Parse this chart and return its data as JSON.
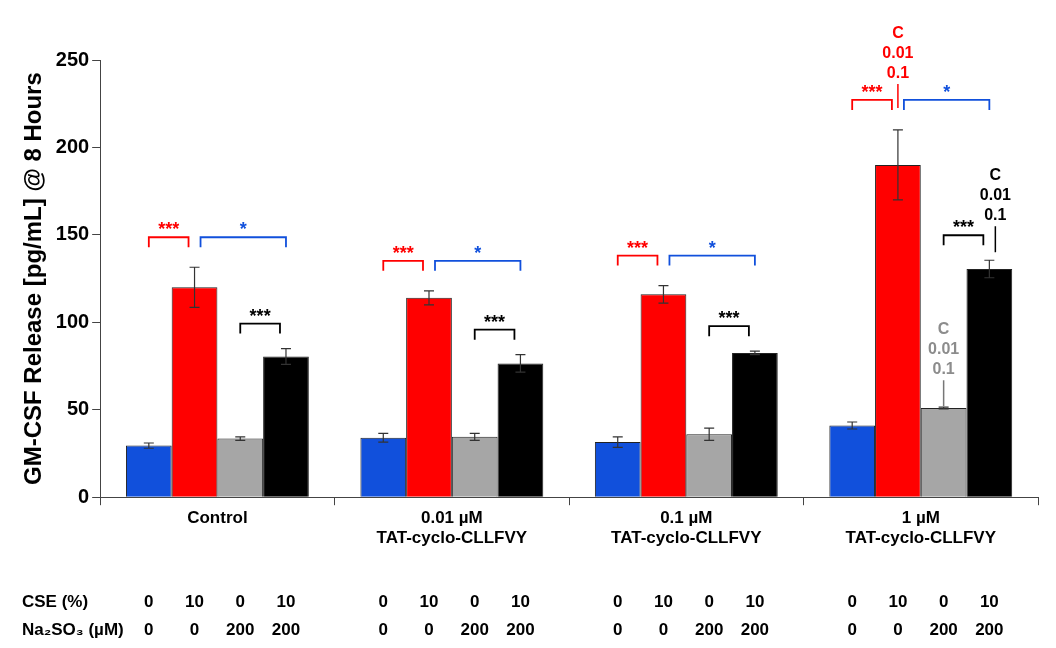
{
  "chart_data": {
    "type": "bar",
    "ylabel": "GM-CSF Release [pg/mL] @ 8 Hours",
    "categories": [
      "Control",
      "0.01 µM TAT-cyclo-CLLFVY",
      "0.1 µM TAT-cyclo-CLLFVY",
      "1 µM TAT-cyclo-CLLFVY"
    ],
    "series": [
      {
        "color": "#1150dc",
        "values": [
          29.5,
          34,
          31.5,
          41
        ],
        "errors": [
          1.5,
          2.5,
          3,
          2
        ]
      },
      {
        "color": "#ff0000",
        "values": [
          120,
          114,
          116,
          190
        ],
        "errors": [
          11.5,
          4,
          5,
          20
        ]
      },
      {
        "color": "#a6a6a6",
        "values": [
          33.5,
          34.5,
          36,
          51
        ],
        "errors": [
          1,
          2,
          3.5,
          0.5
        ]
      },
      {
        "color": "#000000",
        "values": [
          80.5,
          76.5,
          82.5,
          130.5
        ],
        "errors": [
          4.5,
          5,
          1,
          5
        ]
      }
    ],
    "ylim": [
      0,
      250
    ],
    "yticks": [
      0,
      50,
      100,
      150,
      200,
      250
    ],
    "grid": false,
    "legend": false,
    "annotations": [
      "CSE (%)",
      "Na₂SO₃ (µM)",
      "0",
      "10",
      "0",
      "10",
      "0",
      "10",
      "0",
      "10",
      "0",
      "10",
      "0",
      "10",
      "0",
      "10",
      "0",
      "10",
      "0",
      "0",
      "200",
      "200",
      "0",
      "0",
      "200",
      "200",
      "0",
      "0",
      "200",
      "200",
      "0",
      "0",
      "200",
      "200",
      "***",
      "*",
      "***",
      "***",
      "*",
      "***",
      "***",
      "*",
      "***",
      "***",
      "*",
      "***",
      "C 0.01 0.1",
      {
        "text": "C 0.01 0.1",
        "x": "1 µM TAT-cyclo-CLLFVY",
        "y": 52
      },
      "C 0.01 0.1"
    ]
  }
}
